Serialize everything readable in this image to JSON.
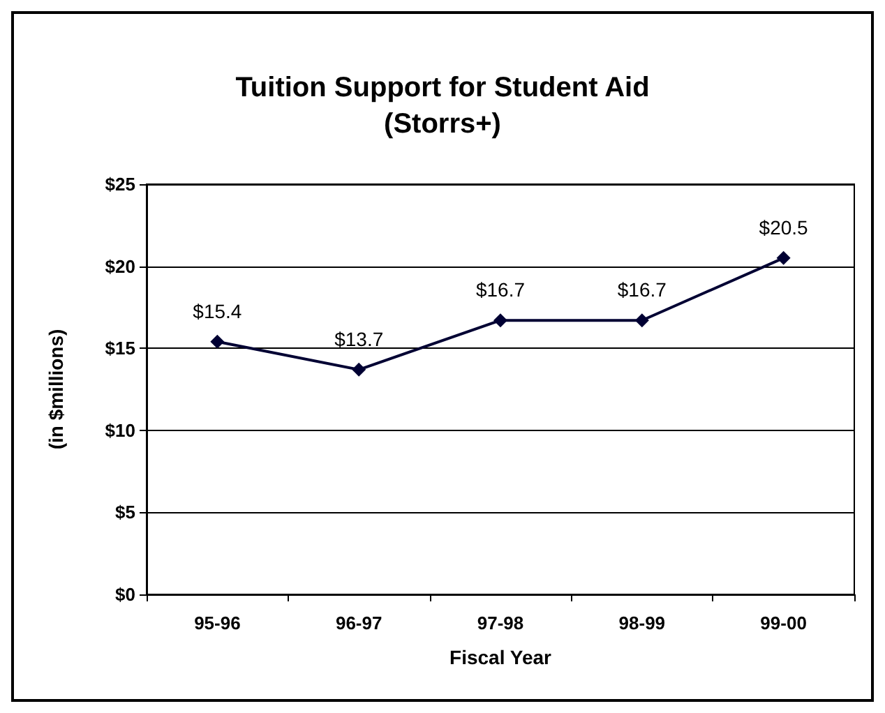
{
  "chart_data": {
    "type": "line",
    "title": "Tuition Support for Student Aid",
    "subtitle": "(Storrs+)",
    "xlabel": "Fiscal Year",
    "ylabel": "(in $millions)",
    "categories": [
      "95-96",
      "96-97",
      "97-98",
      "98-99",
      "99-00"
    ],
    "series": [
      {
        "color": "#000033",
        "values": [
          15.4,
          13.7,
          16.7,
          16.7,
          20.5
        ],
        "value_labels": [
          "$15.4",
          "$13.7",
          "$16.7",
          "$16.7",
          "$20.5"
        ]
      }
    ],
    "ylim": [
      0,
      25
    ],
    "yticks": [
      {
        "value": 0,
        "label": "$0"
      },
      {
        "value": 5,
        "label": "$5"
      },
      {
        "value": 10,
        "label": "$10"
      },
      {
        "value": 15,
        "label": "$15"
      },
      {
        "value": 20,
        "label": "$20"
      },
      {
        "value": 25,
        "label": "$25"
      }
    ],
    "grid": "y",
    "marker": "diamond",
    "line_style": "solid"
  }
}
